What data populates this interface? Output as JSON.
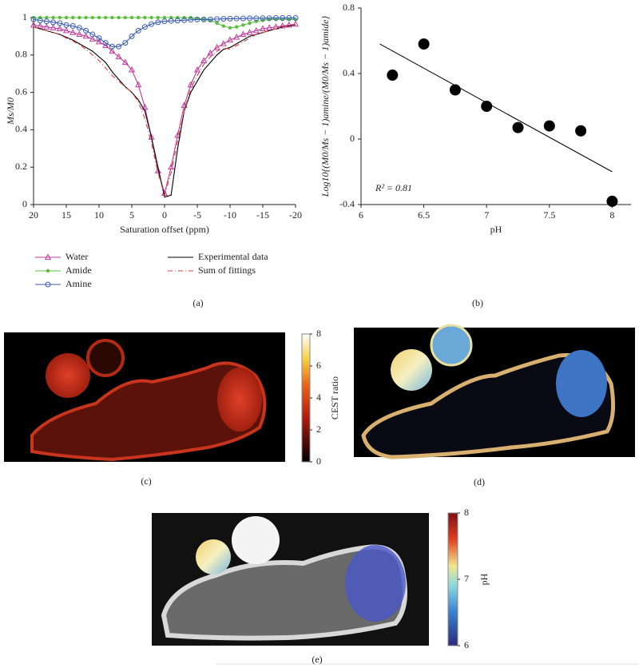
{
  "chart_data": [
    {
      "type": "line",
      "panel_label": "(a)",
      "x_label": "Saturation offset (ppm)",
      "y_label": "Ms/M0",
      "x": [
        20,
        19,
        18,
        17,
        16,
        15,
        14,
        13,
        12,
        11,
        10,
        9,
        8,
        7,
        6,
        5,
        4,
        3,
        2,
        1,
        0,
        -1,
        -2,
        -3,
        -4,
        -5,
        -6,
        -7,
        -8,
        -9,
        -10,
        -11,
        -12,
        -13,
        -14,
        -15,
        -16,
        -17,
        -18,
        -19,
        -20
      ],
      "xlim": [
        20,
        -20
      ],
      "xticks": [
        20,
        15,
        10,
        5,
        0,
        -5,
        -10,
        -15,
        -20
      ],
      "ylim": [
        0,
        1
      ],
      "yticks": [
        0,
        0.2,
        0.4,
        0.6,
        0.8,
        1
      ],
      "series": [
        {
          "name": "Water",
          "color": "#c2399c",
          "marker": "triangle",
          "values": [
            0.96,
            0.955,
            0.95,
            0.945,
            0.94,
            0.93,
            0.92,
            0.91,
            0.9,
            0.885,
            0.87,
            0.85,
            0.82,
            0.79,
            0.76,
            0.72,
            0.64,
            0.52,
            0.36,
            0.18,
            0.06,
            0.2,
            0.37,
            0.53,
            0.64,
            0.72,
            0.77,
            0.81,
            0.84,
            0.86,
            0.88,
            0.895,
            0.91,
            0.92,
            0.93,
            0.94,
            0.945,
            0.95,
            0.955,
            0.96,
            0.965
          ]
        },
        {
          "name": "Amide",
          "color": "#5cbf3c",
          "marker": "dot",
          "values": [
            1,
            1,
            1,
            1,
            1,
            1,
            1,
            1,
            1,
            1,
            1,
            1,
            1,
            1,
            1,
            1,
            1,
            1,
            1,
            1,
            1,
            1,
            1,
            1,
            1,
            0.995,
            0.99,
            0.985,
            0.97,
            0.955,
            0.945,
            0.95,
            0.96,
            0.97,
            0.98,
            0.985,
            0.99,
            0.99,
            0.99,
            0.99,
            0.99
          ]
        },
        {
          "name": "Amine",
          "color": "#3a5bb5",
          "marker": "circle",
          "values": [
            0.99,
            0.985,
            0.98,
            0.975,
            0.97,
            0.96,
            0.955,
            0.945,
            0.93,
            0.91,
            0.89,
            0.865,
            0.845,
            0.845,
            0.865,
            0.9,
            0.93,
            0.95,
            0.965,
            0.975,
            0.98,
            0.982,
            0.984,
            0.986,
            0.988,
            0.99,
            0.99,
            0.99,
            0.992,
            0.993,
            0.994,
            0.995,
            0.995,
            0.996,
            0.996,
            0.997,
            0.997,
            0.998,
            0.998,
            0.998,
            0.998
          ]
        },
        {
          "name": "Experimental data",
          "color": "#000000",
          "marker": "none",
          "values": [
            0.95,
            0.94,
            0.93,
            0.92,
            0.91,
            0.895,
            0.88,
            0.86,
            0.84,
            0.82,
            0.79,
            0.76,
            0.71,
            0.67,
            0.63,
            0.6,
            0.56,
            0.5,
            0.36,
            0.2,
            0.04,
            0.05,
            0.3,
            0.5,
            0.6,
            0.66,
            0.72,
            0.76,
            0.8,
            0.83,
            0.84,
            0.86,
            0.88,
            0.9,
            0.91,
            0.92,
            0.93,
            0.94,
            0.95,
            0.955,
            0.96
          ]
        },
        {
          "name": "Sum of fittings",
          "color": "#e03c3c",
          "marker": "none",
          "dash": "6 3 1 3",
          "values": [
            0.95,
            0.94,
            0.93,
            0.92,
            0.91,
            0.89,
            0.875,
            0.855,
            0.83,
            0.8,
            0.77,
            0.73,
            0.69,
            0.66,
            0.63,
            0.6,
            0.55,
            0.46,
            0.33,
            0.17,
            0.05,
            0.17,
            0.34,
            0.5,
            0.62,
            0.69,
            0.75,
            0.79,
            0.82,
            0.84,
            0.83,
            0.85,
            0.87,
            0.89,
            0.91,
            0.92,
            0.93,
            0.94,
            0.95,
            0.955,
            0.96
          ]
        }
      ]
    },
    {
      "type": "scatter",
      "panel_label": "(b)",
      "x_label": "pH",
      "y_label": "Log10{(M0/Ms − 1)amine/(M0/Ms − 1)amide}",
      "annotation": "R² = 0.81",
      "color": "#000000",
      "x": [
        6.25,
        6.5,
        6.75,
        7,
        7.25,
        7.5,
        7.75,
        8
      ],
      "values": [
        0.39,
        0.58,
        0.3,
        0.2,
        0.07,
        0.08,
        0.05,
        -0.38
      ],
      "fit_line": {
        "x": [
          6.15,
          8
        ],
        "y": [
          0.58,
          -0.2
        ]
      },
      "xlim": [
        6,
        8.15
      ],
      "xticks": [
        6,
        6.5,
        7,
        7.5,
        8
      ],
      "ylim": [
        -0.4,
        0.8
      ],
      "yticks": [
        -0.4,
        0,
        0.4,
        0.8
      ]
    }
  ],
  "images": [
    {
      "label": "(c)",
      "colorbar": {
        "title": "CEST ratio",
        "lim": [
          0,
          8
        ],
        "ticks": [
          0,
          2,
          4,
          6,
          8
        ]
      }
    },
    {
      "label": "(d)"
    },
    {
      "label": "(e)",
      "colorbar": {
        "title": "pH",
        "lim": [
          6,
          8
        ],
        "ticks": [
          6,
          7,
          8
        ]
      }
    }
  ]
}
